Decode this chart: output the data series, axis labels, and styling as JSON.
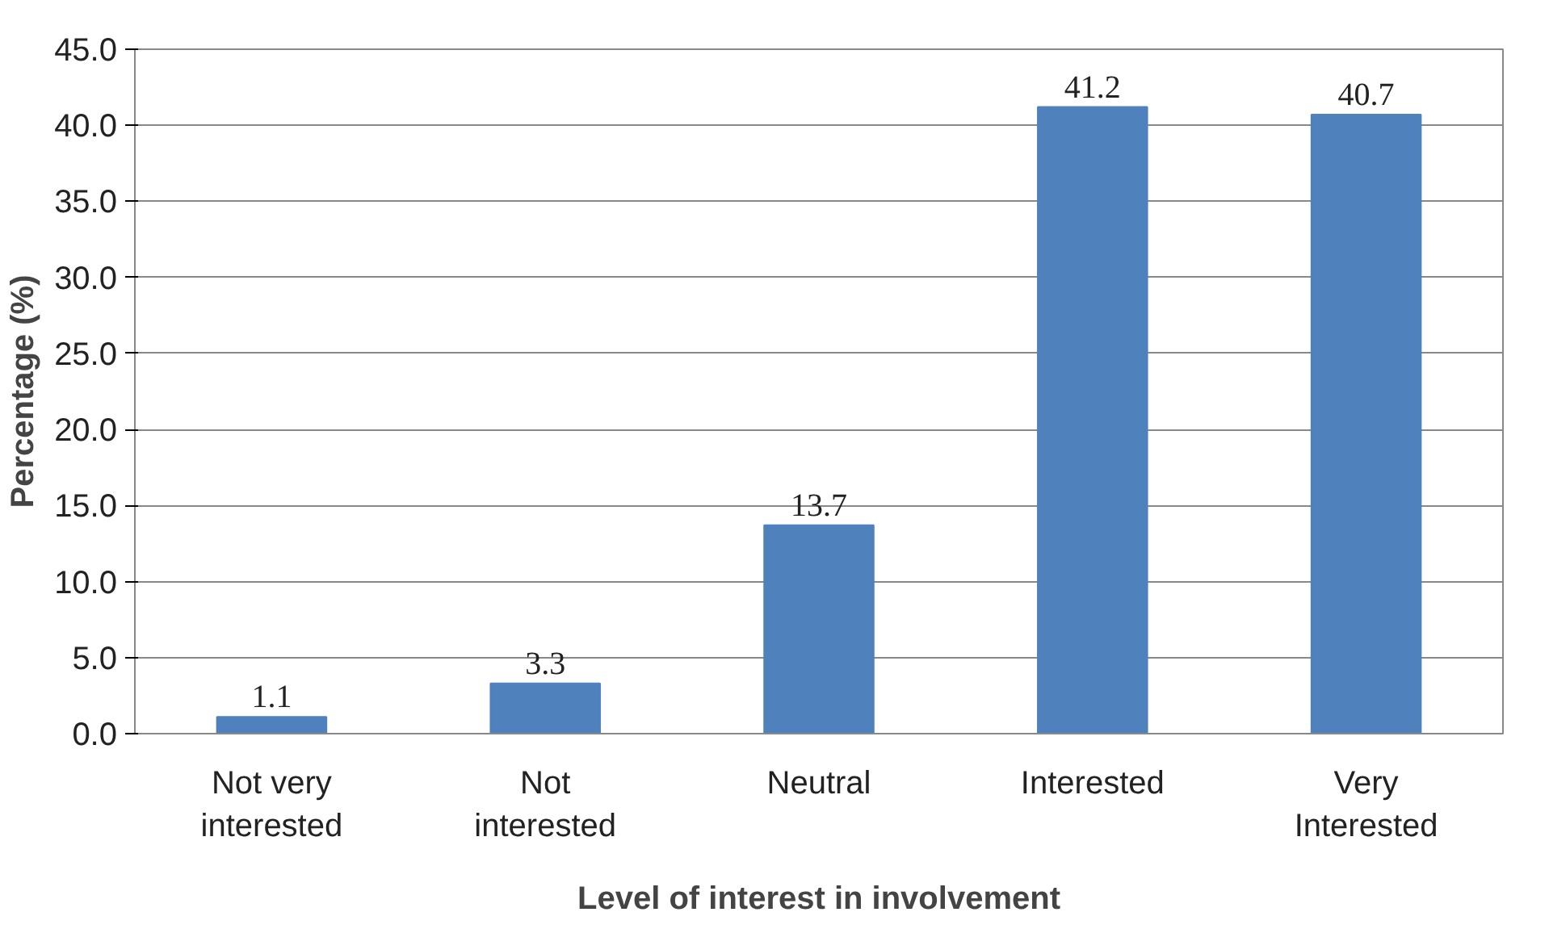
{
  "chart_data": {
    "type": "bar",
    "xlabel": "Level of interest in involvement",
    "ylabel": "Percentage (%)",
    "categories": [
      "Not very\ninterested",
      "Not\ninterested",
      "Neutral",
      "Interested",
      "Very\nInterested"
    ],
    "values": [
      1.1,
      3.3,
      13.7,
      41.2,
      40.7
    ],
    "color": "#4f81bd",
    "ylim": [
      0,
      45
    ],
    "yticks": [
      {
        "value": 0,
        "label": "0.0"
      },
      {
        "value": 5,
        "label": "5.0"
      },
      {
        "value": 10,
        "label": "10.0"
      },
      {
        "value": 15,
        "label": "15.0"
      },
      {
        "value": 20,
        "label": "20.0"
      },
      {
        "value": 25,
        "label": "25.0"
      },
      {
        "value": 30,
        "label": "30.0"
      },
      {
        "value": 35,
        "label": "35.0"
      },
      {
        "value": 40,
        "label": "40.0"
      },
      {
        "value": 45,
        "label": "45.0"
      }
    ],
    "grid": "y",
    "data_labels": true
  }
}
